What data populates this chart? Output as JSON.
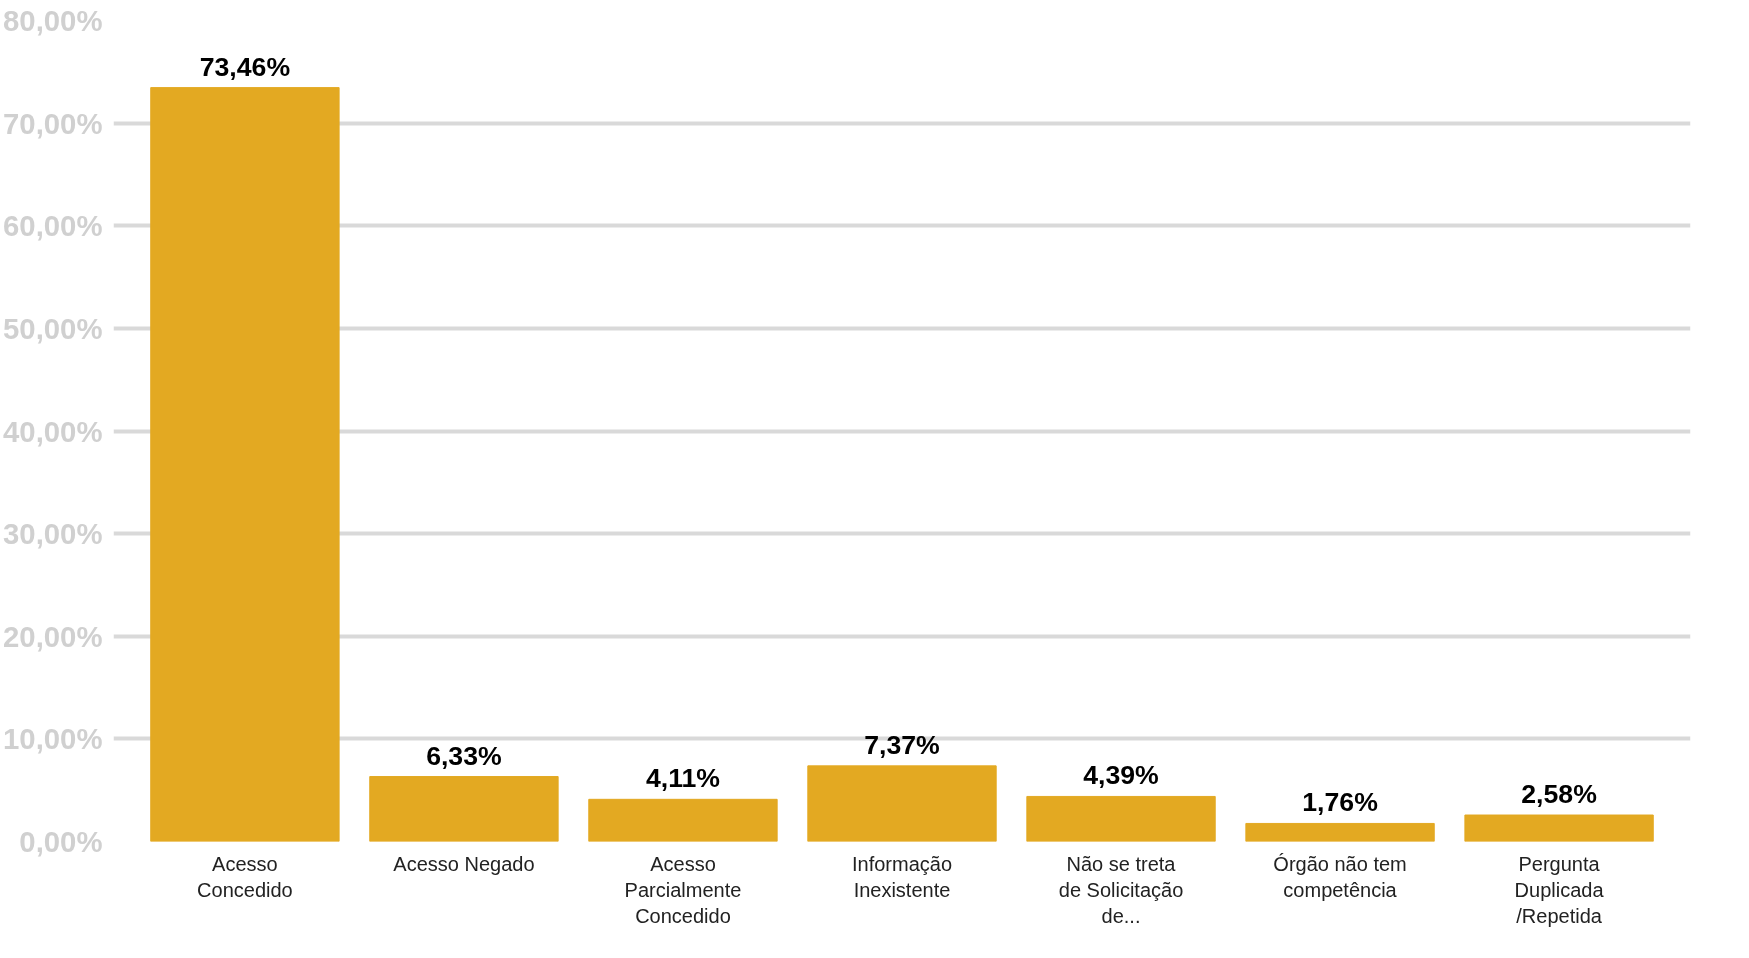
{
  "chart_data": {
    "type": "bar",
    "categories": [
      "Acesso Concedido",
      "Acesso Negado",
      "Acesso Parcialmente Concedido",
      "Informação Inexistente",
      "Não se treta de Solicitação de...",
      "Órgão não tem competência",
      "Pergunta Duplicada /Repetida"
    ],
    "values": [
      73.46,
      6.33,
      4.11,
      7.37,
      4.39,
      1.76,
      2.58
    ],
    "value_labels": [
      "73,46%",
      "6,33%",
      "4,11%",
      "7,37%",
      "4,39%",
      "1,76%",
      "2,58%"
    ],
    "color": "#e3a922",
    "ylim": [
      0,
      80
    ],
    "yticks": [
      {
        "value": 0,
        "label": "0,00%"
      },
      {
        "value": 10,
        "label": "10,00%"
      },
      {
        "value": 20,
        "label": "20,00%"
      },
      {
        "value": 30,
        "label": "30,00%"
      },
      {
        "value": 40,
        "label": "40,00%"
      },
      {
        "value": 50,
        "label": "50,00%"
      },
      {
        "value": 60,
        "label": "60,00%"
      },
      {
        "value": 70,
        "label": "70,00%"
      },
      {
        "value": 80,
        "label": "80,00%"
      }
    ],
    "grid": "y"
  }
}
